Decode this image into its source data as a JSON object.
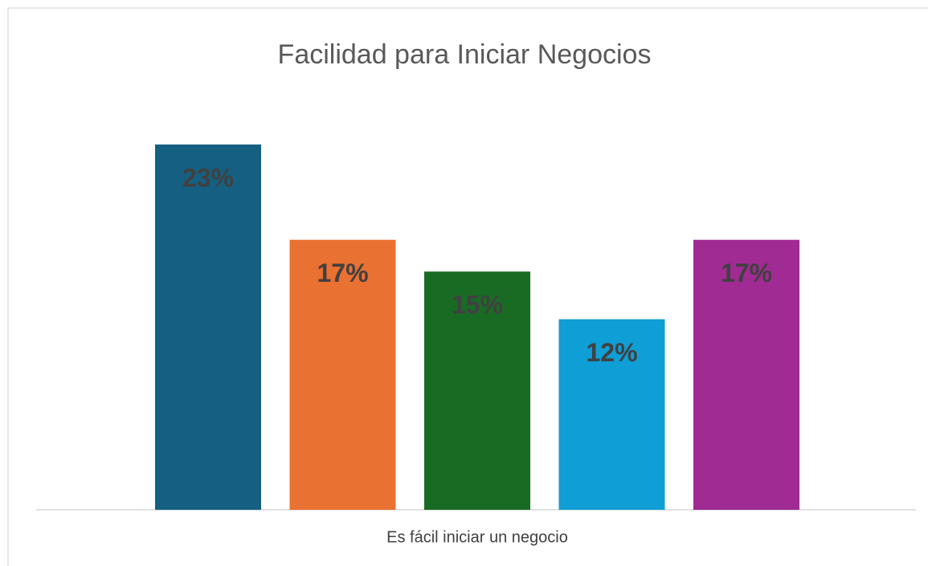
{
  "chart_data": {
    "type": "bar",
    "title": "Facilidad para Iniciar Negocios",
    "categories": [
      "Es fácil iniciar un negocio"
    ],
    "series": [
      {
        "color": "#156082",
        "values": [
          23
        ],
        "value_labels": [
          "23%"
        ]
      },
      {
        "color": "#e97132",
        "values": [
          17
        ],
        "value_labels": [
          "17%"
        ]
      },
      {
        "color": "#196b24",
        "values": [
          15
        ],
        "value_labels": [
          "15%"
        ]
      },
      {
        "color": "#0f9ed5",
        "values": [
          12
        ],
        "value_labels": [
          "12%"
        ]
      },
      {
        "color": "#a02b93",
        "values": [
          17
        ],
        "value_labels": [
          "17%"
        ]
      }
    ]
  }
}
